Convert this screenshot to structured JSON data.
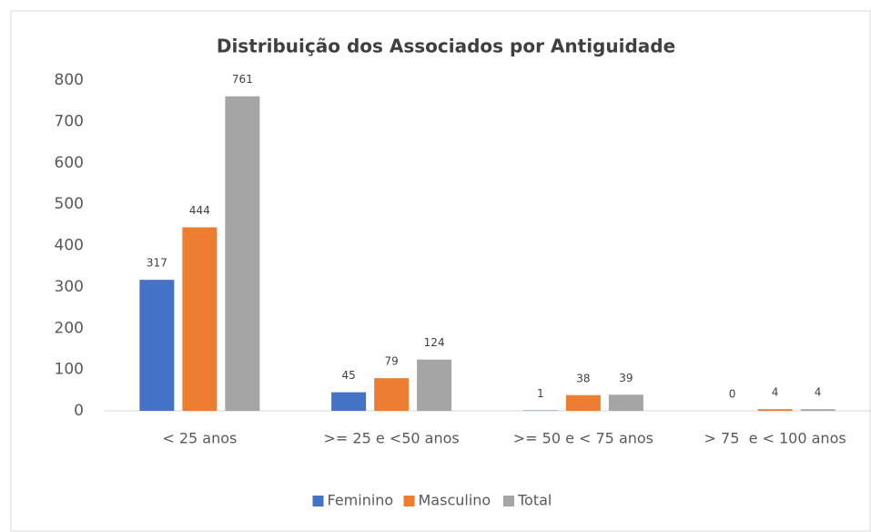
{
  "chart_data": {
    "type": "bar",
    "title": "Distribuição dos Associados por Antiguidade",
    "categories": [
      "< 25 anos",
      ">= 25 e <50 anos",
      ">= 50 e < 75 anos",
      "> 75  e < 100 anos"
    ],
    "series": [
      {
        "name": "Feminino",
        "color": "#4472c4",
        "values": [
          317,
          45,
          1,
          0
        ]
      },
      {
        "name": "Masculino",
        "color": "#ed7d31",
        "values": [
          444,
          79,
          38,
          4
        ]
      },
      {
        "name": "Total",
        "color": "#a5a5a5",
        "values": [
          761,
          124,
          39,
          4
        ]
      }
    ],
    "ylim": [
      0,
      800
    ],
    "yticks": [
      0,
      100,
      200,
      300,
      400,
      500,
      600,
      700,
      800
    ],
    "grid": false,
    "legend": "bottom"
  }
}
